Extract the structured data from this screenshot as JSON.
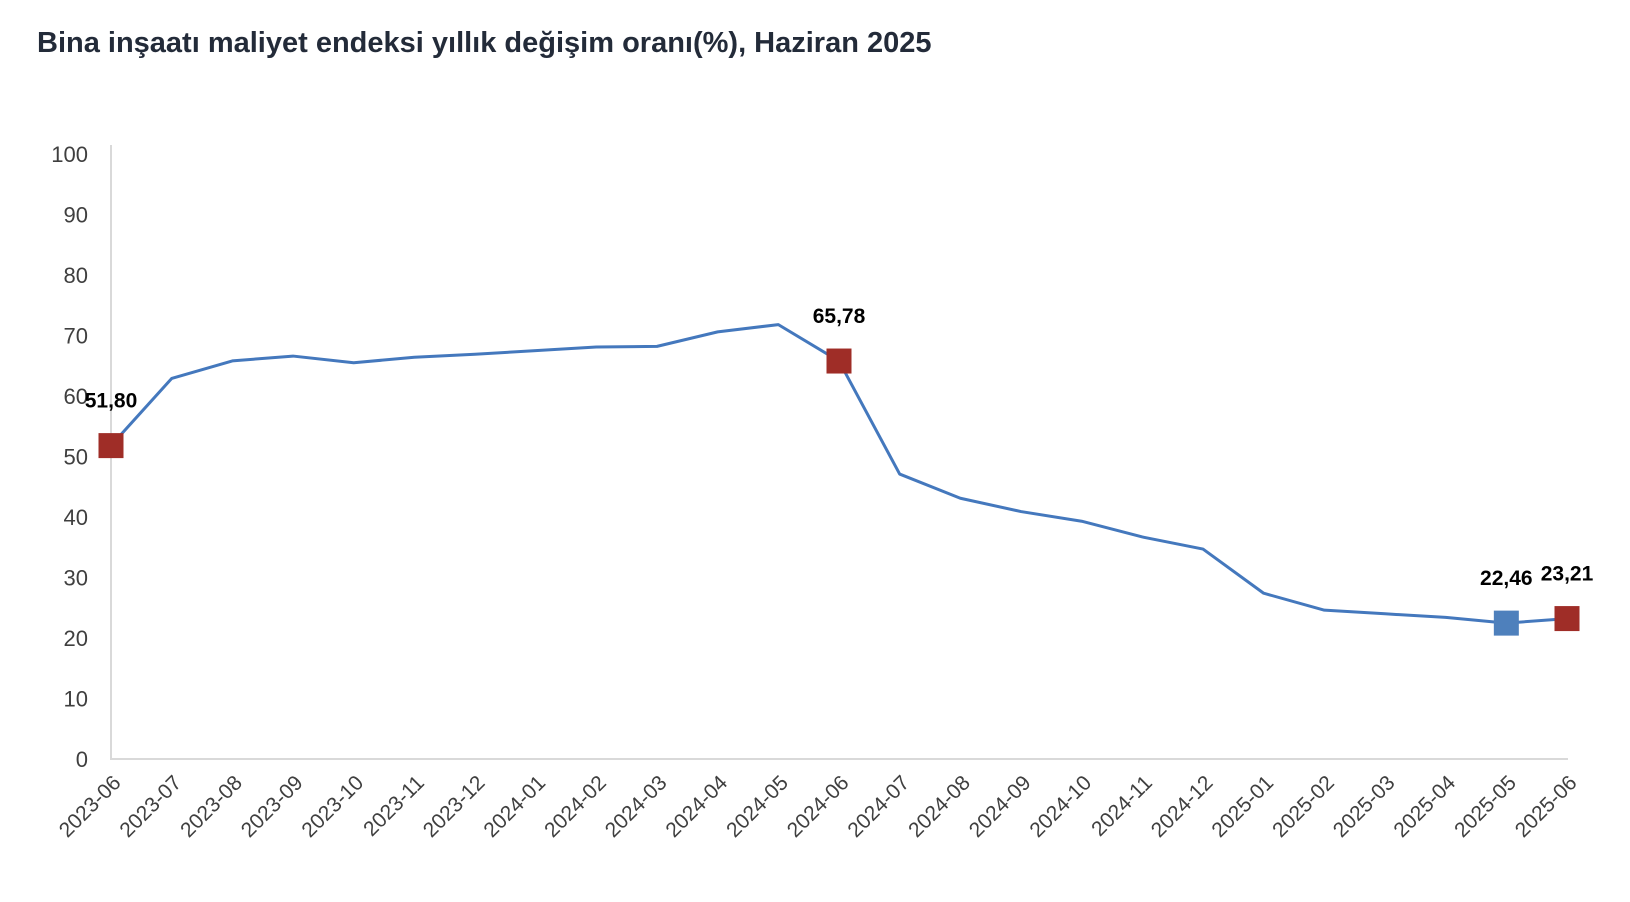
{
  "header": {
    "title": "Bina inşaatı maliyet endeksi yıllık değişim oranı(%), Haziran 2025"
  },
  "chart_data": {
    "type": "line",
    "title": "Bina inşaatı maliyet endeksi yıllık değişim oranı(%), Haziran 2025",
    "xlabel": "",
    "ylabel": "",
    "ylim": [
      0,
      100
    ],
    "ytick_step": 10,
    "yticks": [
      0,
      10,
      20,
      30,
      40,
      50,
      60,
      70,
      80,
      90,
      100
    ],
    "grid": false,
    "legend": "none",
    "categories": [
      "2023-06",
      "2023-07",
      "2023-08",
      "2023-09",
      "2023-10",
      "2023-11",
      "2023-12",
      "2024-01",
      "2024-02",
      "2024-03",
      "2024-04",
      "2024-05",
      "2024-06",
      "2024-07",
      "2024-08",
      "2024-09",
      "2024-10",
      "2024-11",
      "2024-12",
      "2025-01",
      "2025-02",
      "2025-03",
      "2025-04",
      "2025-05",
      "2025-06"
    ],
    "series": [
      {
        "name": "Bina inşaatı maliyet endeksi yıllık değişim oranı (%)",
        "color": "#4478bd",
        "values": [
          51.8,
          62.9,
          65.8,
          66.6,
          65.5,
          66.4,
          66.9,
          67.5,
          68.1,
          68.2,
          70.6,
          71.8,
          65.78,
          47.1,
          43.1,
          40.9,
          39.3,
          36.7,
          34.7,
          27.4,
          24.6,
          24.0,
          23.4,
          22.46,
          23.21
        ]
      }
    ],
    "highlight_points": [
      {
        "category": "2023-06",
        "value": 51.8,
        "label": "51,80",
        "color": "#9f2d27"
      },
      {
        "category": "2024-06",
        "value": 65.78,
        "label": "65,78",
        "color": "#9f2d27"
      },
      {
        "category": "2025-05",
        "value": 22.46,
        "label": "22,46",
        "color": "#4e80bc"
      },
      {
        "category": "2025-06",
        "value": 23.21,
        "label": "23,21",
        "color": "#9f2d27"
      }
    ],
    "colors": {
      "line": "#4478bd",
      "axis_line": "#d9d9d9",
      "tick_label": "#3f3f3f",
      "data_label": "#000000",
      "title": "#232b39",
      "background": "#ffffff"
    }
  }
}
